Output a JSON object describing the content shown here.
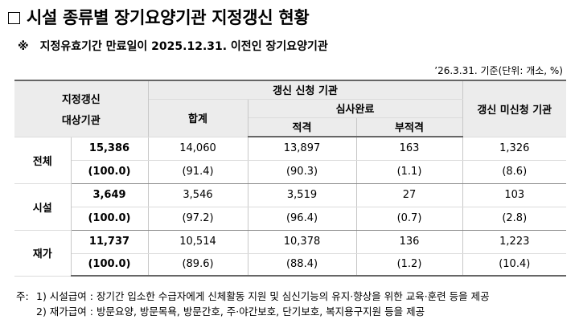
{
  "title": "시설 종류별 장기요양기관 지정갱신 현황",
  "subtitle_mark": "※",
  "subtitle": "지정유효기간 만료일이 2025.12.31. 이전인 장기요양기관",
  "unit_note": "’26.3.31. 기준(단위: 개소, %)",
  "headers": {
    "target_line1": "지정갱신",
    "target_line2": "대상기관",
    "applied": "갱신 신청 기관",
    "total": "합계",
    "review_done": "심사완료",
    "pass": "적격",
    "fail": "부적격",
    "not_applied": "갱신 미신청 기관"
  },
  "groups": [
    {
      "label": "전체",
      "count": {
        "target": "15,386",
        "total": "14,060",
        "pass": "13,897",
        "fail": "163",
        "not_applied": "1,326"
      },
      "ratio": {
        "target": "(100.0)",
        "total": "(91.4)",
        "pass": "(90.3)",
        "fail": "(1.1)",
        "not_applied": "(8.6)"
      }
    },
    {
      "label": "시설",
      "count": {
        "target": "3,649",
        "total": "3,546",
        "pass": "3,519",
        "fail": "27",
        "not_applied": "103"
      },
      "ratio": {
        "target": "(100.0)",
        "total": "(97.2)",
        "pass": "(96.4)",
        "fail": "(0.7)",
        "not_applied": "(2.8)"
      }
    },
    {
      "label": "재가",
      "count": {
        "target": "11,737",
        "total": "10,514",
        "pass": "10,378",
        "fail": "136",
        "not_applied": "1,223"
      },
      "ratio": {
        "target": "(100.0)",
        "total": "(89.6)",
        "pass": "(88.4)",
        "fail": "(1.2)",
        "not_applied": "(10.4)"
      }
    }
  ],
  "notes": {
    "prefix": "주:",
    "items": [
      "1) 시설급여 : 장기간 입소한 수급자에게 신체활동 지원 및 심신기능의 유지·향상을 위한 교육·훈련 등을 제공",
      "2) 재가급여 : 방문요양, 방문목욕, 방문간호, 주·야간보호, 단기보호, 복지용구지원 등을 제공"
    ]
  }
}
